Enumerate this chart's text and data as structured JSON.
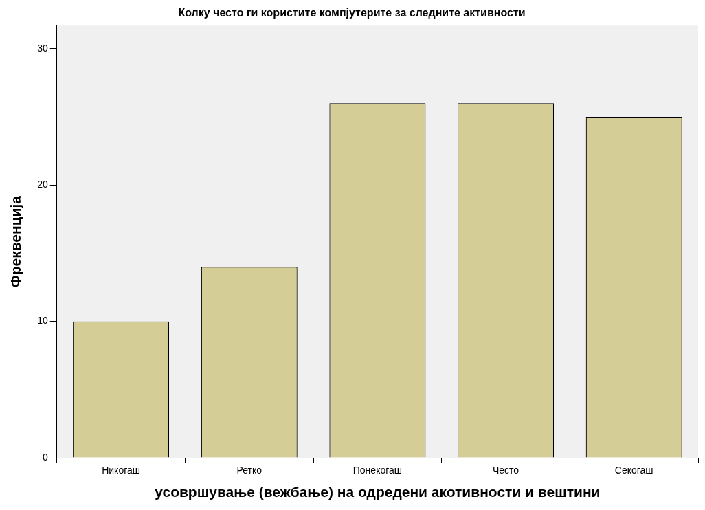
{
  "chart_data": {
    "type": "bar",
    "title": "Колку често ги користите компјутерите за следните активности",
    "xlabel": "усовршување (вежбање) на одредени акотивности и вештини",
    "ylabel": "Фреквенција",
    "categories": [
      "Никогаш",
      "Ретко",
      "Понекогаш",
      "Често",
      "Секогаш"
    ],
    "values": [
      10,
      14,
      26,
      26,
      25
    ],
    "color": "#d4ce96",
    "ylim": [
      0,
      31.7
    ],
    "yticks": [
      0,
      10,
      20,
      30
    ],
    "grid": false,
    "legend": false
  }
}
